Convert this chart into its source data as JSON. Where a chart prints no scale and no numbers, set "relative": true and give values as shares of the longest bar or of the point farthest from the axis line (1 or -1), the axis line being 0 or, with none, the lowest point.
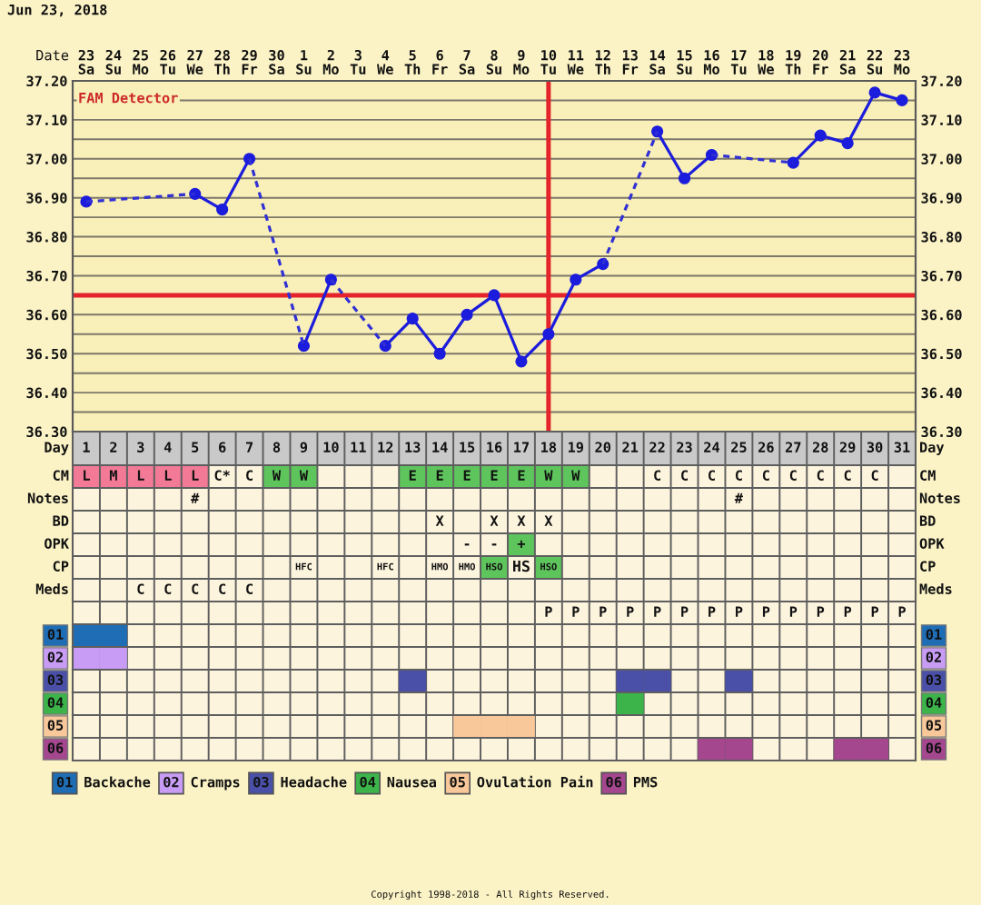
{
  "chart_data": [
    {
      "type": "line",
      "title": "Jun 23, 2018",
      "xlabel": "Date",
      "categories": [
        "23\nSa",
        "24\nSu",
        "25\nMo",
        "26\nTu",
        "27\nWe",
        "28\nTh",
        "29\nFr",
        "30\nSa",
        "1\nSu",
        "2\nMo",
        "3\nTu",
        "4\nWe",
        "5\nTh",
        "6\nFr",
        "7\nSa",
        "8\nSu",
        "9\nMo",
        "10\nTu",
        "11\nWe",
        "12\nTh",
        "13\nFr",
        "14\nSa",
        "15\nSu",
        "16\nMo",
        "17\nTu",
        "18\nWe",
        "19\nTh",
        "20\nFr",
        "21\nSa",
        "22\nSu",
        "23\nMo"
      ],
      "ylim": [
        36.3,
        37.2
      ],
      "yticks": [
        {
          "value": 36.3,
          "label": "36.30"
        },
        {
          "value": 36.35,
          "label": null
        },
        {
          "value": 36.4,
          "label": "36.40"
        },
        {
          "value": 36.45,
          "label": null
        },
        {
          "value": 36.5,
          "label": "36.50"
        },
        {
          "value": 36.55,
          "label": null
        },
        {
          "value": 36.6,
          "label": "36.60"
        },
        {
          "value": 36.7,
          "label": "36.70"
        },
        {
          "value": 36.75,
          "label": null
        },
        {
          "value": 36.8,
          "label": "36.80"
        },
        {
          "value": 36.85,
          "label": null
        },
        {
          "value": 36.9,
          "label": "36.90"
        },
        {
          "value": 36.95,
          "label": null
        },
        {
          "value": 37.0,
          "label": "37.00"
        },
        {
          "value": 37.05,
          "label": null
        },
        {
          "value": 37.1,
          "label": "37.10"
        },
        {
          "value": 37.15,
          "label": null
        },
        {
          "value": 37.2,
          "label": "37.20"
        }
      ],
      "y2lim": [
        36.3,
        37.2
      ],
      "y2ticks": [
        {
          "value": 36.3,
          "label": "36.30"
        },
        {
          "value": 36.35,
          "label": null
        },
        {
          "value": 36.4,
          "label": "36.40"
        },
        {
          "value": 36.45,
          "label": null
        },
        {
          "value": 36.5,
          "label": "36.50"
        },
        {
          "value": 36.55,
          "label": null
        },
        {
          "value": 36.6,
          "label": "36.60"
        },
        {
          "value": 36.7,
          "label": "36.70"
        },
        {
          "value": 36.75,
          "label": null
        },
        {
          "value": 36.8,
          "label": "36.80"
        },
        {
          "value": 36.85,
          "label": null
        },
        {
          "value": 36.9,
          "label": "36.90"
        },
        {
          "value": 36.95,
          "label": null
        },
        {
          "value": 37.0,
          "label": "37.00"
        },
        {
          "value": 37.05,
          "label": null
        },
        {
          "value": 37.1,
          "label": "37.10"
        },
        {
          "value": 37.15,
          "label": null
        },
        {
          "value": 37.2,
          "label": "37.20"
        }
      ],
      "grid": true,
      "series": [
        {
          "color": "#1c1cdc",
          "marker": "circle",
          "line_style": "solid",
          "values": [
            36.89,
            null,
            null,
            null,
            36.91,
            36.87,
            37.0,
            null,
            36.52,
            36.69,
            null,
            36.52,
            36.59,
            36.5,
            36.6,
            36.65,
            36.48,
            36.55,
            36.69,
            36.73,
            null,
            37.07,
            36.95,
            37.01,
            null,
            null,
            36.99,
            37.06,
            37.04,
            37.17,
            37.15
          ]
        },
        {
          "color": "#3030d4",
          "marker": "none",
          "line_style": "dashed",
          "x": [
            "23\nSa",
            "27\nWe",
            null,
            "29\nFr",
            "1\nSu",
            null,
            "2\nMo",
            "4\nWe",
            null,
            "12\nTh",
            "14\nSa",
            null,
            "16\nMo",
            "19\nTh"
          ],
          "values": [
            36.89,
            36.91,
            null,
            37.0,
            36.52,
            null,
            36.69,
            36.52,
            null,
            36.73,
            37.07,
            null,
            37.01,
            36.99
          ]
        }
      ],
      "ref_lines": [
        {
          "axis": "y",
          "value": 36.65,
          "color": "#e4232b"
        },
        {
          "axis": "x",
          "value": "10\nTu",
          "color": "#e4232b"
        }
      ],
      "annotations": [
        "FAM Detector"
      ]
    },
    {
      "type": "heatmap",
      "xlabel": "Day",
      "categories": [
        "1",
        "2",
        "3",
        "4",
        "5",
        "6",
        "7",
        "8",
        "9",
        "10",
        "11",
        "12",
        "13",
        "14",
        "15",
        "16",
        "17",
        "18",
        "19",
        "20",
        "21",
        "22",
        "23",
        "24",
        "25",
        "26",
        "27",
        "28",
        "29",
        "30",
        "31"
      ],
      "y_categories": [
        "CM",
        "Notes",
        "BD",
        "OPK",
        "CP",
        "Meds"
      ],
      "y2_categories": [
        "CM",
        "Notes",
        "BD",
        "OPK",
        "CP",
        "Meds"
      ],
      "cells": [
        [
          null,
          null,
          null,
          null,
          null,
          null,
          null,
          null,
          null,
          null,
          null,
          null,
          null,
          null,
          null,
          null,
          null,
          null,
          null,
          null,
          null,
          null,
          null,
          null,
          null,
          null,
          null,
          null,
          null,
          null,
          null
        ],
        [
          null,
          null,
          null,
          null,
          null,
          null,
          null,
          null,
          null,
          null,
          null,
          null,
          null,
          null,
          null,
          null,
          null,
          null,
          null,
          null,
          null,
          null,
          null,
          null,
          null,
          null,
          null,
          null,
          null,
          null,
          null
        ],
        [
          null,
          null,
          null,
          null,
          null,
          null,
          null,
          null,
          null,
          null,
          null,
          null,
          null,
          null,
          null,
          null,
          null,
          null,
          null,
          null,
          null,
          null,
          null,
          null,
          null,
          null,
          null,
          null,
          null,
          null,
          null
        ],
        [
          null,
          null,
          null,
          null,
          null,
          null,
          null,
          null,
          null,
          null,
          null,
          null,
          null,
          null,
          null,
          null,
          null,
          null,
          null,
          null,
          null,
          null,
          null,
          null,
          null,
          null,
          null,
          null,
          null,
          null,
          null
        ],
        [
          null,
          null,
          null,
          null,
          null,
          null,
          null,
          null,
          null,
          null,
          null,
          null,
          null,
          null,
          null,
          null,
          null,
          null,
          null,
          null,
          null,
          null,
          null,
          null,
          null,
          null,
          null,
          null,
          null,
          null,
          null
        ],
        [
          null,
          null,
          null,
          null,
          null,
          null,
          null,
          null,
          null,
          null,
          null,
          null,
          null,
          null,
          null,
          null,
          null,
          null,
          null,
          null,
          null,
          null,
          null,
          null,
          null,
          null,
          null,
          null,
          null,
          null,
          null
        ]
      ],
      "cell_labels": [
        [
          "L",
          "M",
          "L",
          "L",
          "L",
          "C*",
          "C",
          "W",
          "W",
          null,
          null,
          null,
          "E",
          "E",
          "E",
          "E",
          "E",
          "W",
          "W",
          null,
          null,
          "C",
          "C",
          "C",
          "C",
          "C",
          "C",
          "C",
          "C",
          "C",
          null
        ],
        [
          null,
          null,
          null,
          null,
          "#",
          null,
          null,
          null,
          null,
          null,
          null,
          null,
          null,
          null,
          null,
          null,
          null,
          null,
          null,
          null,
          null,
          null,
          null,
          null,
          "#",
          null,
          null,
          null,
          null,
          null,
          null
        ],
        [
          null,
          null,
          null,
          null,
          null,
          null,
          null,
          null,
          null,
          null,
          null,
          null,
          null,
          "X",
          null,
          "X",
          "X",
          "X",
          null,
          null,
          null,
          null,
          null,
          null,
          null,
          null,
          null,
          null,
          null,
          null,
          null
        ],
        [
          null,
          null,
          null,
          null,
          null,
          null,
          null,
          null,
          null,
          null,
          null,
          null,
          null,
          null,
          "-",
          "-",
          "+",
          null,
          null,
          null,
          null,
          null,
          null,
          null,
          null,
          null,
          null,
          null,
          null,
          null,
          null
        ],
        [
          null,
          null,
          null,
          null,
          null,
          null,
          null,
          null,
          "HFC",
          null,
          null,
          "HFC",
          null,
          "HMO",
          "HMO",
          "HSO",
          "HS",
          "HSO",
          null,
          null,
          null,
          null,
          null,
          null,
          null,
          null,
          null,
          null,
          null,
          null,
          null
        ],
        [
          null,
          null,
          "C",
          "C",
          "C",
          "C",
          "C",
          null,
          null,
          null,
          null,
          null,
          null,
          null,
          null,
          null,
          null,
          null,
          null,
          null,
          null,
          null,
          null,
          null,
          null,
          null,
          null,
          null,
          null,
          null,
          null
        ]
      ],
      "colors": [
        [
          "#f27a96",
          "#f27a96",
          "#f27a96",
          "#f27a96",
          "#f27a96",
          null,
          null,
          "#5ec45c",
          "#5ec45c",
          null,
          null,
          null,
          "#5ec45c",
          "#5ec45c",
          "#5ec45c",
          "#5ec45c",
          "#5ec45c",
          "#5ec45c",
          "#5ec45c",
          null,
          null,
          null,
          null,
          null,
          null,
          null,
          null,
          null,
          null,
          null,
          null
        ],
        [
          null,
          null,
          null,
          null,
          null,
          null,
          null,
          null,
          null,
          null,
          null,
          null,
          null,
          null,
          null,
          null,
          null,
          null,
          null,
          null,
          null,
          null,
          null,
          null,
          null,
          null,
          null,
          null,
          null,
          null,
          null
        ],
        [
          null,
          null,
          null,
          null,
          null,
          null,
          null,
          null,
          null,
          null,
          null,
          null,
          null,
          null,
          null,
          null,
          null,
          null,
          null,
          null,
          null,
          null,
          null,
          null,
          null,
          null,
          null,
          null,
          null,
          null,
          null
        ],
        [
          null,
          null,
          null,
          null,
          null,
          null,
          null,
          null,
          null,
          null,
          null,
          null,
          null,
          null,
          null,
          null,
          "#5ec45c",
          null,
          null,
          null,
          null,
          null,
          null,
          null,
          null,
          null,
          null,
          null,
          null,
          null,
          null
        ],
        [
          null,
          null,
          null,
          null,
          null,
          null,
          null,
          null,
          null,
          null,
          null,
          null,
          null,
          null,
          null,
          "#5ec45c",
          null,
          "#5ec45c",
          null,
          null,
          null,
          null,
          null,
          null,
          null,
          null,
          null,
          null,
          null,
          null,
          null
        ],
        [
          null,
          null,
          null,
          null,
          null,
          null,
          null,
          null,
          null,
          null,
          null,
          null,
          null,
          null,
          null,
          null,
          null,
          null,
          null,
          null,
          null,
          null,
          null,
          null,
          null,
          null,
          null,
          null,
          null,
          null,
          null
        ]
      ]
    },
    {
      "type": "bar",
      "relative": true,
      "grid": "x",
      "legend": "bottom",
      "ylabel": "01",
      "y2label": "01",
      "categories": [
        null,
        null,
        null,
        null,
        null,
        null,
        null,
        null,
        null,
        null,
        null,
        null,
        null,
        null,
        null,
        null,
        null,
        "P",
        "P",
        "P",
        "P",
        "P",
        "P",
        "P",
        "P",
        "P",
        "P",
        "P",
        "P",
        "P",
        "P"
      ],
      "series": [
        {
          "name": "Backache",
          "color": "#1f6db5",
          "values": [
            1,
            1,
            null,
            null,
            null,
            null,
            null,
            null,
            null,
            null,
            null,
            null,
            null,
            null,
            null,
            null,
            null,
            null,
            null,
            null,
            null,
            null,
            null,
            null,
            null,
            null,
            null,
            null,
            null,
            null,
            null
          ]
        }
      ]
    },
    {
      "type": "bar",
      "relative": true,
      "grid": "x",
      "legend": "bottom",
      "ylabel": "02",
      "y2label": "02",
      "categories": [
        null,
        null,
        null,
        null,
        null,
        null,
        null,
        null,
        null,
        null,
        null,
        null,
        null,
        null,
        null,
        null,
        null,
        null,
        null,
        null,
        null,
        null,
        null,
        null,
        null,
        null,
        null,
        null,
        null,
        null,
        null
      ],
      "series": [
        {
          "name": "Cramps",
          "color": "#c89cf5",
          "values": [
            1,
            1,
            null,
            null,
            null,
            null,
            null,
            null,
            null,
            null,
            null,
            null,
            null,
            null,
            null,
            null,
            null,
            null,
            null,
            null,
            null,
            null,
            null,
            null,
            null,
            null,
            null,
            null,
            null,
            null,
            null
          ]
        }
      ]
    },
    {
      "type": "bar",
      "relative": true,
      "grid": "x",
      "legend": "bottom",
      "ylabel": "03",
      "y2label": "03",
      "categories": [
        null,
        null,
        null,
        null,
        null,
        null,
        null,
        null,
        null,
        null,
        null,
        null,
        null,
        null,
        null,
        null,
        null,
        null,
        null,
        null,
        null,
        null,
        null,
        null,
        null,
        null,
        null,
        null,
        null,
        null,
        null
      ],
      "series": [
        {
          "name": "Headache",
          "color": "#4a50a8",
          "values": [
            null,
            null,
            null,
            null,
            null,
            null,
            null,
            null,
            null,
            null,
            null,
            null,
            1,
            null,
            null,
            null,
            null,
            null,
            null,
            null,
            1,
            1,
            null,
            null,
            1,
            null,
            null,
            null,
            null,
            null,
            null
          ]
        }
      ]
    },
    {
      "type": "bar",
      "relative": true,
      "grid": "x",
      "legend": "bottom",
      "ylabel": "04",
      "y2label": "04",
      "categories": [
        null,
        null,
        null,
        null,
        null,
        null,
        null,
        null,
        null,
        null,
        null,
        null,
        null,
        null,
        null,
        null,
        null,
        null,
        null,
        null,
        null,
        null,
        null,
        null,
        null,
        null,
        null,
        null,
        null,
        null,
        null
      ],
      "series": [
        {
          "name": "Nausea",
          "color": "#3cb44a",
          "values": [
            null,
            null,
            null,
            null,
            null,
            null,
            null,
            null,
            null,
            null,
            null,
            null,
            null,
            null,
            null,
            null,
            null,
            null,
            null,
            null,
            1,
            null,
            null,
            null,
            null,
            null,
            null,
            null,
            null,
            null,
            null
          ]
        }
      ]
    },
    {
      "type": "bar",
      "relative": true,
      "grid": "x",
      "legend": "bottom",
      "ylabel": "05",
      "y2label": "05",
      "categories": [
        null,
        null,
        null,
        null,
        null,
        null,
        null,
        null,
        null,
        null,
        null,
        null,
        null,
        null,
        null,
        null,
        null,
        null,
        null,
        null,
        null,
        null,
        null,
        null,
        null,
        null,
        null,
        null,
        null,
        null,
        null
      ],
      "series": [
        {
          "name": "Ovulation Pain",
          "color": "#f8c89a",
          "values": [
            null,
            null,
            null,
            null,
            null,
            null,
            null,
            null,
            null,
            null,
            null,
            null,
            null,
            null,
            1,
            1,
            1,
            null,
            null,
            null,
            null,
            null,
            null,
            null,
            null,
            null,
            null,
            null,
            null,
            null,
            null
          ]
        }
      ]
    },
    {
      "type": "bar",
      "relative": true,
      "grid": "x",
      "legend": "bottom",
      "ylabel": "06",
      "y2label": "06",
      "categories": [
        null,
        null,
        null,
        null,
        null,
        null,
        null,
        null,
        null,
        null,
        null,
        null,
        null,
        null,
        null,
        null,
        null,
        null,
        null,
        null,
        null,
        null,
        null,
        null,
        null,
        null,
        null,
        null,
        null,
        null,
        null
      ],
      "series": [
        {
          "name": "PMS",
          "color": "#a4478f",
          "values": [
            null,
            null,
            null,
            null,
            null,
            null,
            null,
            null,
            null,
            null,
            null,
            null,
            null,
            null,
            null,
            null,
            null,
            null,
            null,
            null,
            null,
            null,
            null,
            1,
            1,
            null,
            null,
            null,
            1,
            1,
            null
          ]
        }
      ],
      "annotations": [
        "Copyright 1998-2018 - All Rights Reserved."
      ]
    }
  ]
}
